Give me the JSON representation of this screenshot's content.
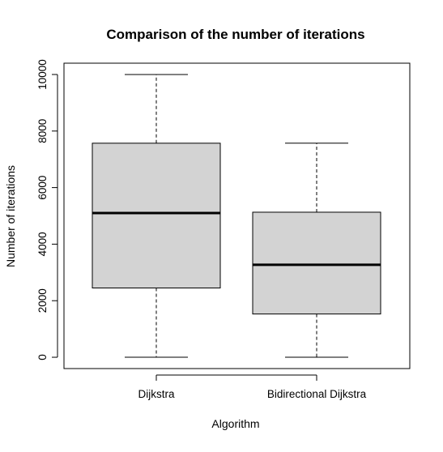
{
  "chart_data": {
    "type": "boxplot",
    "title": "Comparison of the number of iterations",
    "xlabel": "Algorithm",
    "ylabel": "Number of iterations",
    "categories": [
      "Dijkstra",
      "Bidirectional Dijkstra"
    ],
    "boxes": [
      {
        "min": 0,
        "q1": 2450,
        "median": 5100,
        "q3": 7570,
        "max": 10000
      },
      {
        "min": 0,
        "q1": 1530,
        "median": 3270,
        "q3": 5130,
        "max": 7570
      }
    ],
    "yticks": [
      "0",
      "2000",
      "4000",
      "6000",
      "8000",
      "10000"
    ],
    "ylim": [
      -400,
      10400
    ],
    "box_fill": "#d3d3d3",
    "grid": false
  }
}
